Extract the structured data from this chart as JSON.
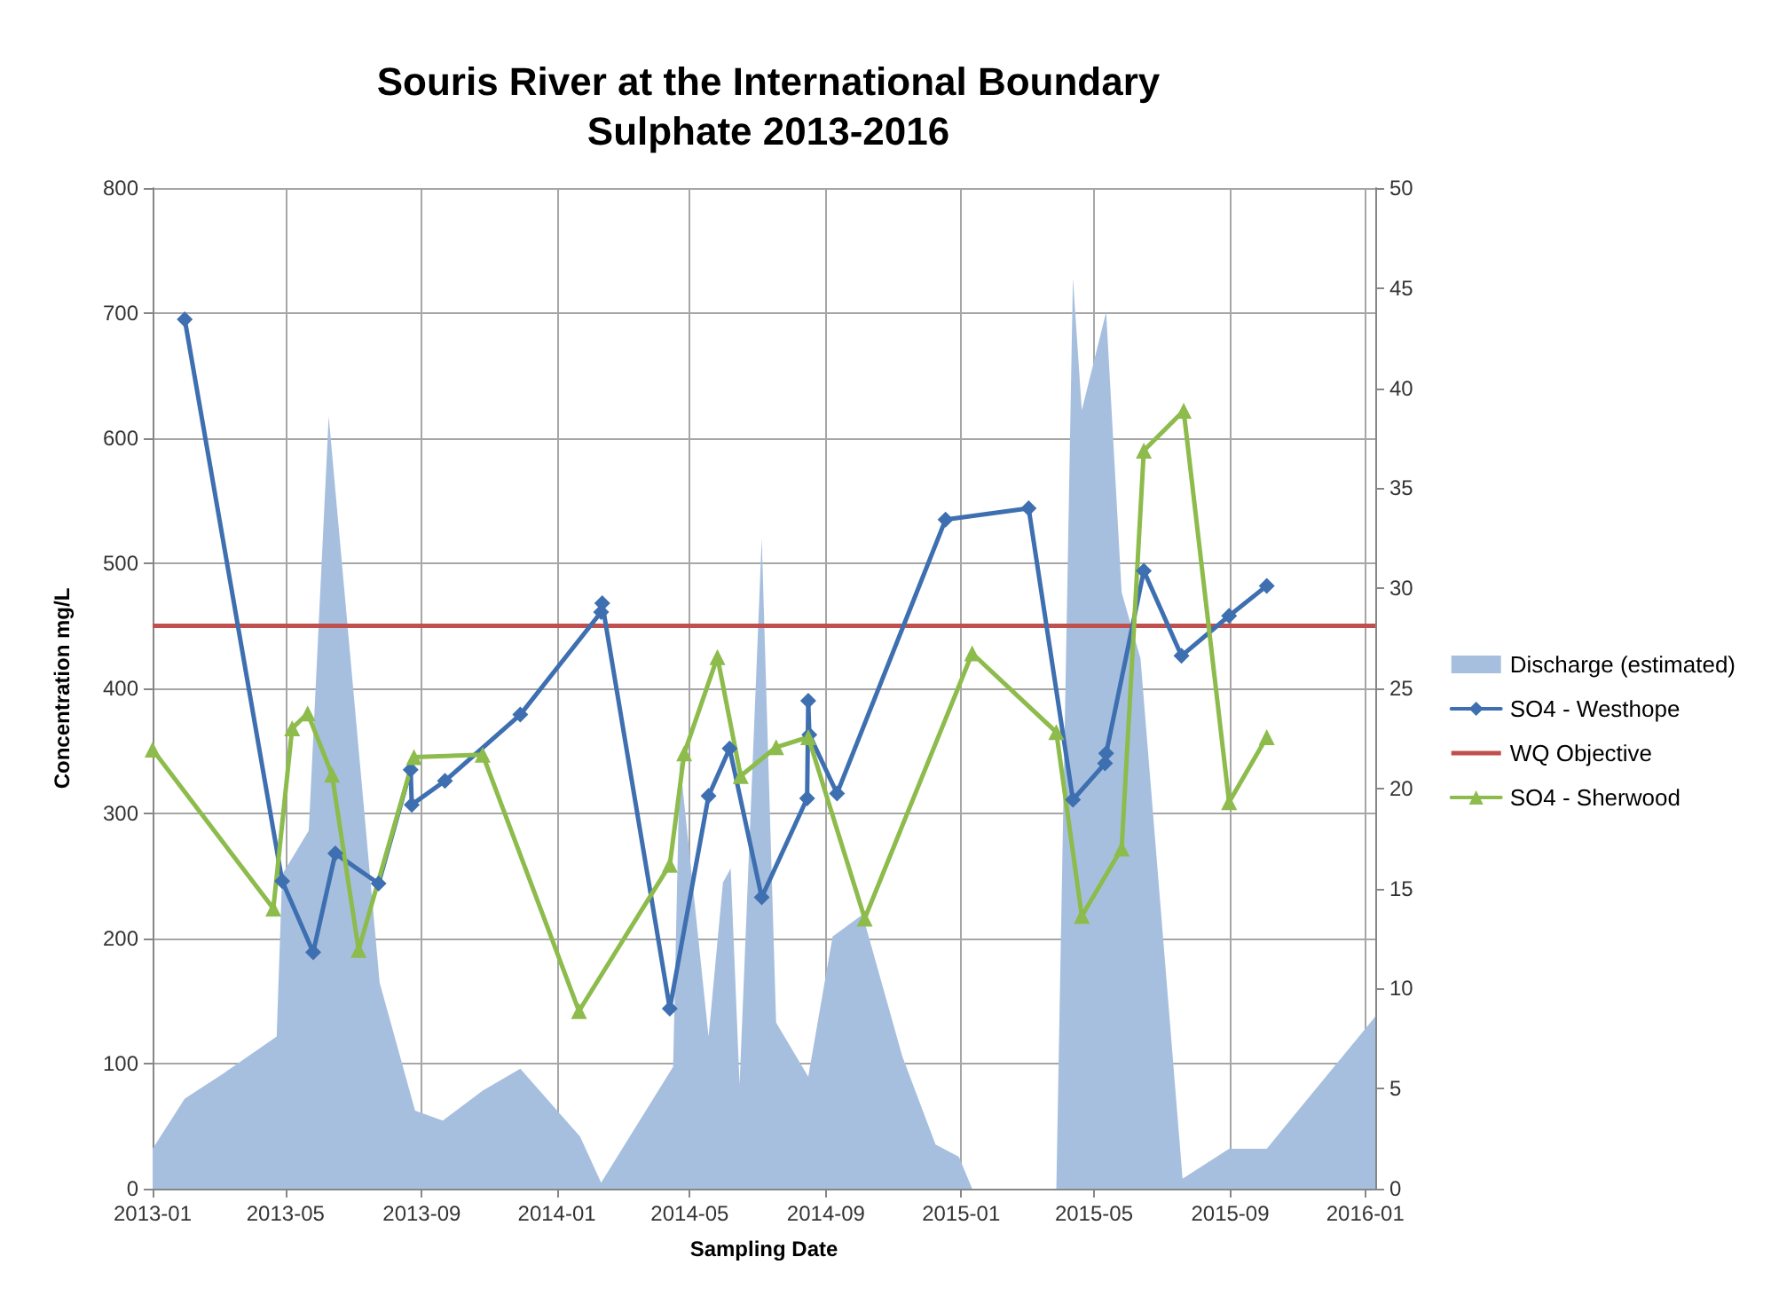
{
  "chart_data": {
    "type": "line",
    "title": "Souris River at the International Boundary",
    "subtitle": "Sulphate 2013-2016",
    "xlabel": "Sampling Date",
    "ylabel": "Concentration mg/L",
    "xlim": [
      "2013-01-01",
      "2016-01-10"
    ],
    "xticks": [
      "2013-01",
      "2013-05",
      "2013-09",
      "2014-01",
      "2014-05",
      "2014-09",
      "2015-01",
      "2015-05",
      "2015-09",
      "2016-01"
    ],
    "ylim": [
      0,
      800
    ],
    "yticks": [
      0,
      100,
      200,
      300,
      400,
      500,
      600,
      700,
      800
    ],
    "y2lim": [
      0,
      50
    ],
    "y2ticks": [
      0,
      5,
      10,
      15,
      20,
      25,
      30,
      35,
      40,
      45,
      50
    ],
    "grid": true,
    "legend": "right",
    "series": [
      {
        "name": "Discharge (estimated)",
        "type": "area",
        "axis": "y2",
        "color": "#a7bfdf",
        "marker": "none",
        "x": [
          "2013-01-01",
          "2013-01-30",
          "2013-03-07",
          "2013-04-23",
          "2013-04-28",
          "2013-05-09",
          "2013-05-22",
          "2013-06-09",
          "2013-07-25",
          "2013-08-26",
          "2013-09-20",
          "2013-10-26",
          "2013-11-29",
          "2014-01-22",
          "2014-02-10",
          "2014-04-16",
          "2014-04-22",
          "2014-05-18",
          "2014-05-31",
          "2014-06-07",
          "2014-06-15",
          "2014-07-05",
          "2014-07-18",
          "2014-08-16",
          "2014-09-07",
          "2014-10-04",
          "2014-11-09",
          "2014-12-09",
          "2014-12-30",
          "2015-01-11",
          "2015-03-28",
          "2015-04-12",
          "2015-04-20",
          "2015-05-12",
          "2015-05-26",
          "2015-06-12",
          "2015-07-20",
          "2015-08-31",
          "2015-10-04",
          "2016-01-10"
        ],
        "values": [
          2.0,
          4.5,
          5.8,
          7.6,
          15.7,
          16.7,
          17.9,
          38.6,
          10.3,
          3.9,
          3.4,
          4.9,
          6.0,
          2.6,
          0.3,
          6.1,
          21.4,
          7.6,
          15.3,
          16.0,
          5.2,
          32.5,
          8.3,
          5.6,
          12.6,
          13.7,
          6.6,
          2.2,
          1.6,
          0,
          0,
          45.5,
          38.9,
          43.8,
          29.8,
          26.5,
          0.5,
          2.0,
          2.0,
          8.6
        ]
      },
      {
        "name": "SO4 - Westhope",
        "color": "#3e6fb0",
        "marker": "diamond",
        "x": [
          "2013-01-30",
          "2013-04-28",
          "2013-05-26",
          "2013-06-15",
          "2013-07-24",
          "2013-08-22",
          "2013-08-23",
          "2013-09-22",
          "2013-11-29",
          "2014-02-10",
          "2014-02-11",
          "2014-04-13",
          "2014-05-18",
          "2014-06-06",
          "2014-07-05",
          "2014-08-15",
          "2014-08-16",
          "2014-08-17",
          "2014-09-11",
          "2014-12-18",
          "2015-03-03",
          "2015-04-12",
          "2015-05-11",
          "2015-05-12",
          "2015-06-15",
          "2015-07-19",
          "2015-08-31",
          "2015-10-04"
        ],
        "values": [
          695,
          246,
          189,
          268,
          244,
          335,
          307,
          326,
          379,
          461,
          468,
          144,
          314,
          352,
          233,
          312,
          390,
          363,
          316,
          535,
          544,
          311,
          340,
          348,
          494,
          426,
          458,
          482
        ]
      },
      {
        "name": "SO4 - Sherwood",
        "color": "#8dbb4c",
        "marker": "triangle",
        "x": [
          "2013-01-01",
          "2013-04-20",
          "2013-05-07",
          "2013-05-21",
          "2013-06-12",
          "2013-07-06",
          "2013-08-25",
          "2013-10-26",
          "2014-01-21",
          "2014-04-13",
          "2014-04-26",
          "2014-05-26",
          "2014-06-16",
          "2014-07-18",
          "2014-08-16",
          "2014-10-06",
          "2015-01-11",
          "2015-03-28",
          "2015-04-20",
          "2015-05-26",
          "2015-06-15",
          "2015-07-21",
          "2015-08-31",
          "2015-10-04"
        ],
        "values": [
          351,
          224,
          368,
          380,
          331,
          191,
          345,
          347,
          142,
          259,
          348,
          425,
          330,
          353,
          361,
          216,
          428,
          365,
          218,
          272,
          590,
          622,
          309,
          361
        ]
      }
    ],
    "ref_lines": [
      {
        "axis": "y",
        "value": 450,
        "label": "WQ Objective",
        "color": "#c0504d"
      }
    ]
  }
}
